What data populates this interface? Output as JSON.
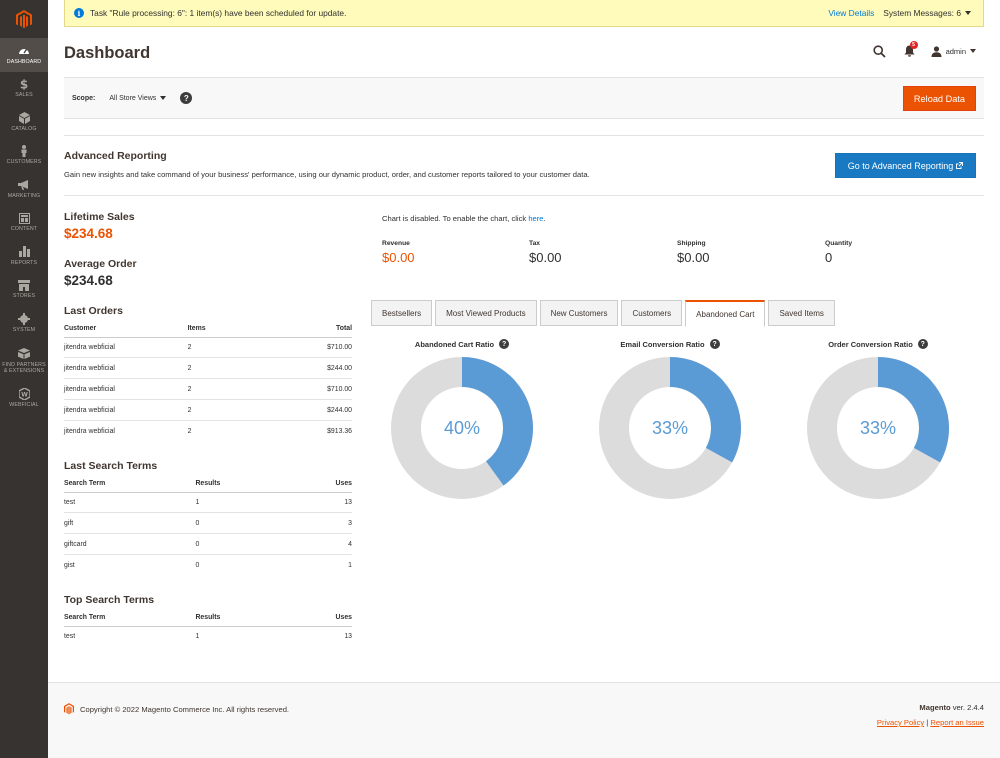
{
  "sidebar": {
    "items": [
      {
        "label": "DASHBOARD",
        "icon": "dashboard-icon"
      },
      {
        "label": "SALES",
        "icon": "dollar-icon"
      },
      {
        "label": "CATALOG",
        "icon": "cube-icon"
      },
      {
        "label": "CUSTOMERS",
        "icon": "person-icon"
      },
      {
        "label": "MARKETING",
        "icon": "megaphone-icon"
      },
      {
        "label": "CONTENT",
        "icon": "layout-icon"
      },
      {
        "label": "REPORTS",
        "icon": "bar-chart-icon"
      },
      {
        "label": "STORES",
        "icon": "store-icon"
      },
      {
        "label": "SYSTEM",
        "icon": "gear-icon"
      },
      {
        "label": "FIND PARTNERS & EXTENSIONS",
        "icon": "extensions-icon"
      },
      {
        "label": "WEBFICIAL",
        "icon": "webficial-icon"
      }
    ]
  },
  "messages": {
    "text": "Task \"Rule processing: 6\": 1 item(s) have been scheduled for update.",
    "view_details": "View Details",
    "system_messages": "System Messages: 6"
  },
  "header": {
    "title": "Dashboard",
    "notifications_count": "5",
    "user": "admin"
  },
  "scope": {
    "label": "Scope:",
    "value": "All Store Views",
    "help": "?",
    "reload": "Reload Data"
  },
  "advanced": {
    "title": "Advanced Reporting",
    "description": "Gain new insights and take command of your business' performance, using our dynamic product, order, and customer reports tailored to your customer data.",
    "button": "Go to Advanced Reporting"
  },
  "lifetime": {
    "label": "Lifetime Sales",
    "value": "$234.68"
  },
  "average": {
    "label": "Average Order",
    "value": "$234.68"
  },
  "last_orders": {
    "title": "Last Orders",
    "headers": [
      "Customer",
      "Items",
      "Total"
    ],
    "rows": [
      [
        "jitendra webficial",
        "2",
        "$710.00"
      ],
      [
        "jitendra webficial",
        "2",
        "$244.00"
      ],
      [
        "jitendra webficial",
        "2",
        "$710.00"
      ],
      [
        "jitendra webficial",
        "2",
        "$244.00"
      ],
      [
        "jitendra webficial",
        "2",
        "$913.36"
      ]
    ]
  },
  "last_search": {
    "title": "Last Search Terms",
    "headers": [
      "Search Term",
      "Results",
      "Uses"
    ],
    "rows": [
      [
        "test",
        "1",
        "13"
      ],
      [
        "gift",
        "0",
        "3"
      ],
      [
        "giftcard",
        "0",
        "4"
      ],
      [
        "gist",
        "0",
        "1"
      ]
    ]
  },
  "top_search": {
    "title": "Top Search Terms",
    "headers": [
      "Search Term",
      "Results",
      "Uses"
    ],
    "rows": [
      [
        "test",
        "1",
        "13"
      ]
    ]
  },
  "chart_notice": {
    "text": "Chart is disabled. To enable the chart, click ",
    "link": "here",
    "end": "."
  },
  "totals": [
    {
      "label": "Revenue",
      "value": "$0.00"
    },
    {
      "label": "Tax",
      "value": "$0.00"
    },
    {
      "label": "Shipping",
      "value": "$0.00"
    },
    {
      "label": "Quantity",
      "value": "0"
    }
  ],
  "tabs": [
    "Bestsellers",
    "Most Viewed Products",
    "New Customers",
    "Customers",
    "Abandoned Cart",
    "Saved Items"
  ],
  "active_tab": "Abandoned Cart",
  "colors": {
    "accent": "#eb5202",
    "donut_fill": "#5b9bd5",
    "donut_track": "#dcdcdc",
    "button_blue": "#1979c3"
  },
  "chart_data": {
    "type": "pie",
    "charts": [
      {
        "title": "Abandoned Cart Ratio",
        "value": 40,
        "label": "40%"
      },
      {
        "title": "Email Conversion Ratio",
        "value": 33,
        "label": "33%"
      },
      {
        "title": "Order Conversion Ratio",
        "value": 33,
        "label": "33%"
      }
    ]
  },
  "footer": {
    "copyright": "Copyright © 2022 Magento Commerce Inc. All rights reserved.",
    "brand": "Magento",
    "version": " ver. 2.4.4",
    "privacy": "Privacy Policy",
    "divider": " | ",
    "report": "Report an Issue"
  }
}
